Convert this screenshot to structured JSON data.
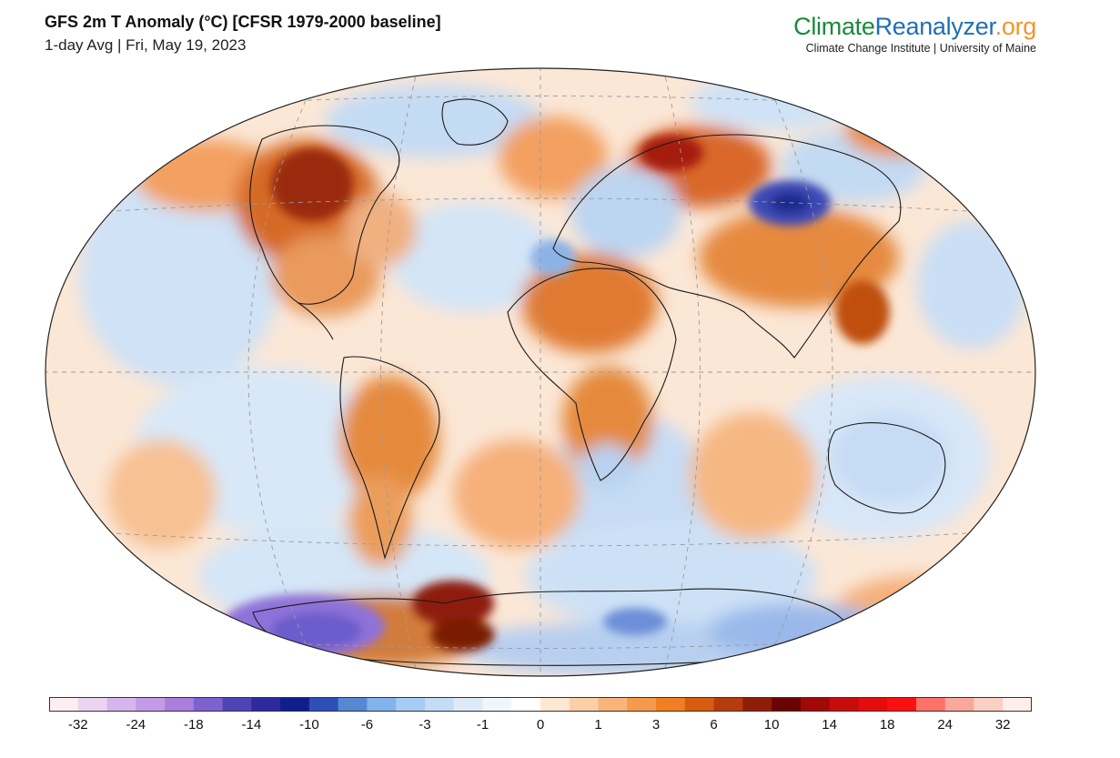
{
  "header": {
    "title": "GFS 2m T Anomaly (°C) [CFSR 1979-2000 baseline]",
    "subtitle": "1-day Avg | Fri, May 19, 2023"
  },
  "brand": {
    "part1": "Climate",
    "part2": "Reanalyzer",
    "part3": ".org",
    "tagline": "Climate Change Institute | University of Maine"
  },
  "colorbar": {
    "colors": [
      "#fdeef4",
      "#ead4f0",
      "#d6b6ec",
      "#c39ae6",
      "#a97edc",
      "#7c62cf",
      "#4f44b5",
      "#2c2a9e",
      "#101d8c",
      "#2e4fb8",
      "#5687d3",
      "#82b3ec",
      "#a6ccf3",
      "#c4dcf5",
      "#deeaf8",
      "#f0f6fc",
      "#ffffff",
      "#fde8d4",
      "#fbd0a6",
      "#f8b479",
      "#f59a4c",
      "#f17f22",
      "#d75c10",
      "#b53c0c",
      "#8e1e08",
      "#6a0404",
      "#a10808",
      "#c70c0c",
      "#e40c0c",
      "#fc1010",
      "#fb7268",
      "#fba89c",
      "#fbd0c4",
      "#fdeeea"
    ],
    "labels": [
      "-32",
      "-24",
      "-18",
      "-14",
      "-10",
      "-6",
      "-3",
      "-1",
      "0",
      "1",
      "3",
      "6",
      "10",
      "14",
      "18",
      "24",
      "32"
    ]
  },
  "map": {
    "projection": "Winkel Tripel",
    "variable": "2m temperature anomaly",
    "regions": [
      {
        "name": "Western Canada",
        "anomaly": "strong warm"
      },
      {
        "name": "Western Russia",
        "anomaly": "strong warm"
      },
      {
        "name": "Mongolia",
        "anomaly": "strong cold"
      },
      {
        "name": "Antarctica (West)",
        "anomaly": "strong cold"
      },
      {
        "name": "Antarctic Peninsula / Weddell Sea",
        "anomaly": "strong warm"
      },
      {
        "name": "Southern Africa",
        "anomaly": "warm"
      },
      {
        "name": "South America",
        "anomaly": "warm"
      }
    ]
  }
}
